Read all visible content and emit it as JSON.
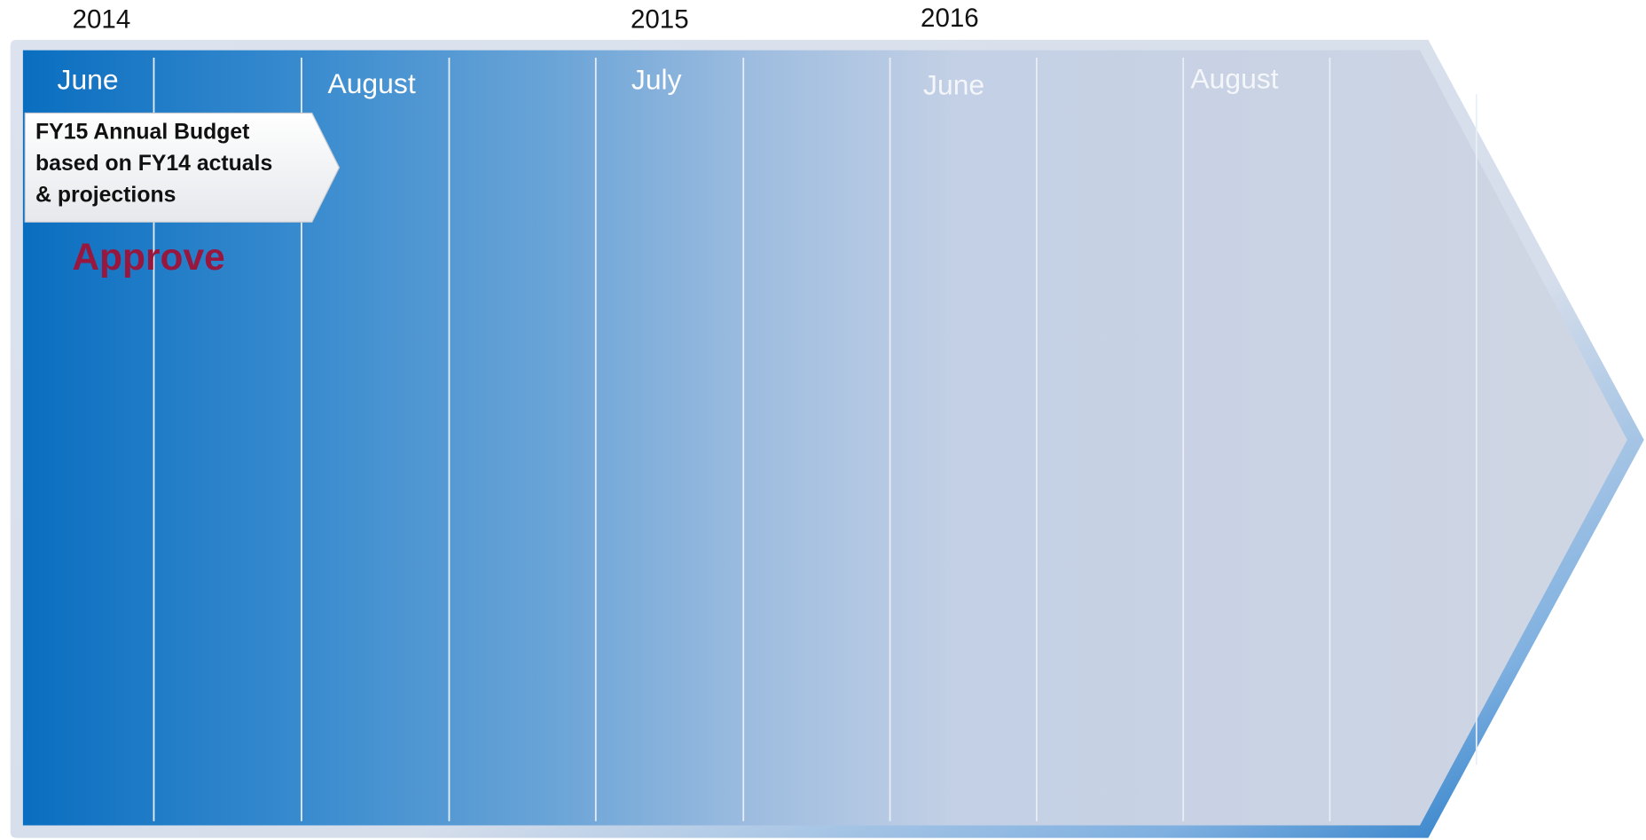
{
  "years": [
    "2014",
    "2015",
    "2016"
  ],
  "months": [
    "June",
    "August",
    "July",
    "June",
    "August"
  ],
  "callout": {
    "lines": [
      "FY15 Annual Budget",
      "based on FY14 actuals",
      "& projections"
    ]
  },
  "status": "Approve"
}
